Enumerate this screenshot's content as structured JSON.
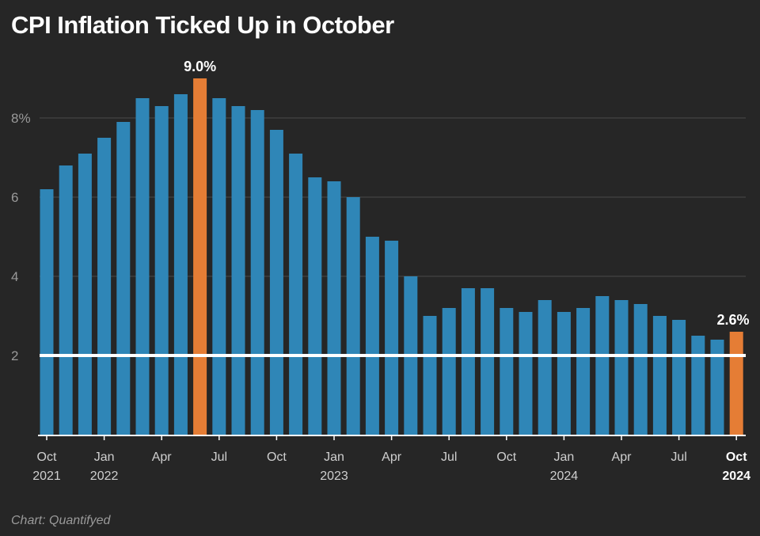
{
  "chart_data": {
    "type": "bar",
    "title": "CPI Inflation Ticked Up in October",
    "credit": "Chart: Quantifyed",
    "xlabel": "",
    "ylabel": "",
    "ylim": [
      0,
      9
    ],
    "y_ticks": [
      {
        "value": 2,
        "label": "2"
      },
      {
        "value": 4,
        "label": "4"
      },
      {
        "value": 6,
        "label": "6"
      },
      {
        "value": 8,
        "label": "8%"
      }
    ],
    "grid": true,
    "reference_line": {
      "value": 2,
      "color": "#ffffff"
    },
    "colors": {
      "bar": "#2f86b7",
      "highlight": "#e57d35",
      "background": "#262626",
      "grid": "#4a4a4a",
      "axis_text": "#9a9a9a",
      "label_text": "#ffffff"
    },
    "categories": [
      "Oct 2021",
      "Nov 2021",
      "Dec 2021",
      "Jan 2022",
      "Feb 2022",
      "Mar 2022",
      "Apr 2022",
      "May 2022",
      "Jun 2022",
      "Jul 2022",
      "Aug 2022",
      "Sep 2022",
      "Oct 2022",
      "Nov 2022",
      "Dec 2022",
      "Jan 2023",
      "Feb 2023",
      "Mar 2023",
      "Apr 2023",
      "May 2023",
      "Jun 2023",
      "Jul 2023",
      "Aug 2023",
      "Sep 2023",
      "Oct 2023",
      "Nov 2023",
      "Dec 2023",
      "Jan 2024",
      "Feb 2024",
      "Mar 2024",
      "Apr 2024",
      "May 2024",
      "Jun 2024",
      "Jul 2024",
      "Aug 2024",
      "Sep 2024",
      "Oct 2024"
    ],
    "values": [
      6.2,
      6.8,
      7.1,
      7.5,
      7.9,
      8.5,
      8.3,
      8.6,
      9.0,
      8.5,
      8.3,
      8.2,
      7.7,
      7.1,
      6.5,
      6.4,
      6.0,
      5.0,
      4.9,
      4.0,
      3.0,
      3.2,
      3.7,
      3.7,
      3.2,
      3.1,
      3.4,
      3.1,
      3.2,
      3.5,
      3.4,
      3.3,
      3.0,
      2.9,
      2.5,
      2.4,
      2.6
    ],
    "highlighted": [
      {
        "index": 8,
        "label": "9.0%"
      },
      {
        "index": 36,
        "label": "2.6%"
      }
    ],
    "x_axis_labels": [
      {
        "index": 0,
        "line1": "Oct",
        "line2": "2021",
        "bold": false
      },
      {
        "index": 3,
        "line1": "Jan",
        "line2": "2022",
        "bold": false
      },
      {
        "index": 6,
        "line1": "Apr",
        "line2": "",
        "bold": false
      },
      {
        "index": 9,
        "line1": "Jul",
        "line2": "",
        "bold": false
      },
      {
        "index": 12,
        "line1": "Oct",
        "line2": "",
        "bold": false
      },
      {
        "index": 15,
        "line1": "Jan",
        "line2": "2023",
        "bold": false
      },
      {
        "index": 18,
        "line1": "Apr",
        "line2": "",
        "bold": false
      },
      {
        "index": 21,
        "line1": "Jul",
        "line2": "",
        "bold": false
      },
      {
        "index": 24,
        "line1": "Oct",
        "line2": "",
        "bold": false
      },
      {
        "index": 27,
        "line1": "Jan",
        "line2": "2024",
        "bold": false
      },
      {
        "index": 30,
        "line1": "Apr",
        "line2": "",
        "bold": false
      },
      {
        "index": 33,
        "line1": "Jul",
        "line2": "",
        "bold": false
      },
      {
        "index": 36,
        "line1": "Oct",
        "line2": "2024",
        "bold": true
      }
    ]
  }
}
